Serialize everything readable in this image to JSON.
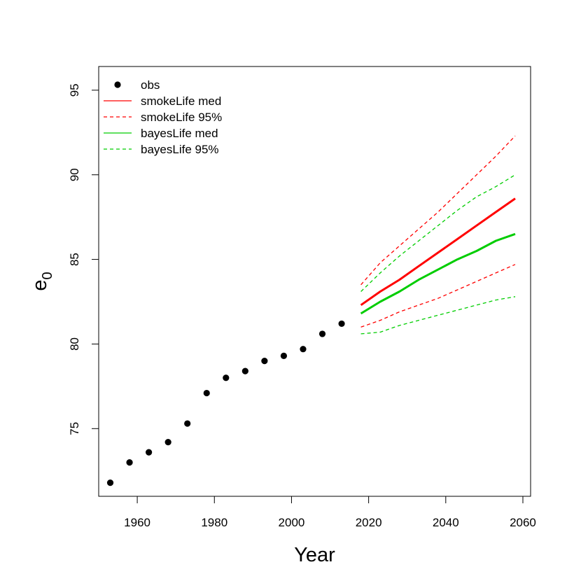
{
  "chart_data": {
    "type": "line",
    "title": "",
    "xlabel": "Year",
    "ylabel": {
      "base": "e",
      "sub": "0"
    },
    "xlim": [
      1950,
      2062
    ],
    "ylim": [
      71,
      96.4
    ],
    "xticks": [
      1960,
      1980,
      2000,
      2020,
      2040,
      2060
    ],
    "yticks": [
      75,
      80,
      85,
      90,
      95
    ],
    "grid": false,
    "legend": {
      "placement": "top-left",
      "entries": [
        {
          "label": "obs",
          "kind": "point",
          "color": "#000000"
        },
        {
          "label": "smokeLife med",
          "kind": "solid",
          "color": "#ff0000"
        },
        {
          "label": "smokeLife 95%",
          "kind": "dashed",
          "color": "#ff0000"
        },
        {
          "label": "bayesLife med",
          "kind": "solid",
          "color": "#00cd00"
        },
        {
          "label": "bayesLife 95%",
          "kind": "dashed",
          "color": "#00cd00"
        }
      ]
    },
    "series": [
      {
        "name": "obs",
        "kind": "point",
        "color": "#000000",
        "x": [
          1953,
          1958,
          1963,
          1968,
          1973,
          1978,
          1983,
          1988,
          1993,
          1998,
          2003,
          2008,
          2013
        ],
        "values": [
          71.8,
          73.0,
          73.6,
          74.2,
          75.3,
          77.1,
          78.0,
          78.4,
          79.0,
          79.3,
          79.7,
          80.6,
          81.2
        ]
      },
      {
        "name": "smokeLife med",
        "kind": "solid",
        "color": "#ff0000",
        "x": [
          2018,
          2023,
          2028,
          2033,
          2038,
          2043,
          2048,
          2053,
          2058
        ],
        "values": [
          82.3,
          83.1,
          83.8,
          84.6,
          85.4,
          86.2,
          87.0,
          87.8,
          88.6
        ]
      },
      {
        "name": "smokeLife 95%",
        "kind": "dashed",
        "color": "#ff0000",
        "x": [
          2018,
          2023,
          2028,
          2033,
          2038,
          2043,
          2048,
          2053,
          2058
        ],
        "values": [
          83.5,
          84.8,
          85.8,
          86.8,
          87.8,
          88.9,
          90.0,
          91.1,
          92.3
        ]
      },
      {
        "name": "smokeLife 95%",
        "kind": "dashed",
        "color": "#ff0000",
        "x": [
          2018,
          2023,
          2028,
          2033,
          2038,
          2043,
          2048,
          2053,
          2058
        ],
        "values": [
          81.0,
          81.4,
          81.9,
          82.3,
          82.7,
          83.2,
          83.7,
          84.2,
          84.7
        ]
      },
      {
        "name": "bayesLife med",
        "kind": "solid",
        "color": "#00cd00",
        "x": [
          2018,
          2023,
          2028,
          2033,
          2038,
          2043,
          2048,
          2053,
          2058
        ],
        "values": [
          81.8,
          82.5,
          83.1,
          83.8,
          84.4,
          85.0,
          85.5,
          86.1,
          86.5
        ]
      },
      {
        "name": "bayesLife 95%",
        "kind": "dashed",
        "color": "#00cd00",
        "x": [
          2018,
          2023,
          2028,
          2033,
          2038,
          2043,
          2048,
          2053,
          2058
        ],
        "values": [
          83.1,
          84.2,
          85.2,
          86.1,
          87.0,
          87.9,
          88.7,
          89.3,
          90.0
        ]
      },
      {
        "name": "bayesLife 95%",
        "kind": "dashed",
        "color": "#00cd00",
        "x": [
          2018,
          2023,
          2028,
          2033,
          2038,
          2043,
          2048,
          2053,
          2058
        ],
        "values": [
          80.6,
          80.7,
          81.1,
          81.4,
          81.7,
          82.0,
          82.3,
          82.6,
          82.8
        ]
      }
    ]
  }
}
